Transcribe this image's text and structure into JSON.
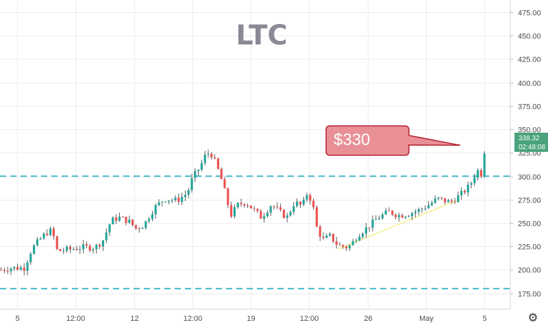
{
  "chart_data": {
    "type": "candlestick",
    "title": "LTC",
    "ylim": [
      158,
      488
    ],
    "y_ticks": [
      175,
      200,
      225,
      250,
      275,
      300,
      325,
      350,
      375,
      400,
      425,
      450,
      475
    ],
    "y_tick_labels": [
      "175.00",
      "200.00",
      "225.00",
      "250.00",
      "275.00",
      "300.00",
      "325.00",
      "350.00",
      "375.00",
      "400.00",
      "425.00",
      "450.00",
      "475.00"
    ],
    "x_tick_labels": [
      "5",
      "12:00",
      "12",
      "12:00",
      "19",
      "12:00",
      "26",
      "May",
      "5"
    ],
    "horizontal_levels": [
      300,
      180
    ],
    "trendline": {
      "from": {
        "t": 0.662,
        "price": 222
      },
      "to": {
        "t": 0.895,
        "price": 274
      }
    },
    "callout": {
      "text": "$330",
      "price": 333
    },
    "last_price": {
      "value": "338.32",
      "countdown": "02:48:08",
      "price": 338.32
    },
    "colors": {
      "up": "#26a69a",
      "down": "#ef5350",
      "wick": "#333333",
      "level": "#3fb9c9",
      "trend": "#f5ee8a",
      "callout_fill": "#e89096",
      "callout_stroke": "#b5202b",
      "tag": "#4aa37d"
    },
    "price_path": [
      [
        0.0,
        200
      ],
      [
        0.02,
        202
      ],
      [
        0.045,
        202
      ],
      [
        0.06,
        222
      ],
      [
        0.075,
        232
      ],
      [
        0.09,
        240
      ],
      [
        0.1,
        242
      ],
      [
        0.11,
        220
      ],
      [
        0.135,
        222
      ],
      [
        0.16,
        224
      ],
      [
        0.185,
        224
      ],
      [
        0.2,
        232
      ],
      [
        0.215,
        252
      ],
      [
        0.23,
        256
      ],
      [
        0.25,
        252
      ],
      [
        0.265,
        244
      ],
      [
        0.28,
        248
      ],
      [
        0.3,
        266
      ],
      [
        0.32,
        276
      ],
      [
        0.345,
        274
      ],
      [
        0.365,
        282
      ],
      [
        0.375,
        298
      ],
      [
        0.39,
        310
      ],
      [
        0.4,
        322
      ],
      [
        0.41,
        326
      ],
      [
        0.42,
        314
      ],
      [
        0.43,
        300
      ],
      [
        0.438,
        284
      ],
      [
        0.45,
        258
      ],
      [
        0.465,
        270
      ],
      [
        0.48,
        272
      ],
      [
        0.495,
        264
      ],
      [
        0.51,
        256
      ],
      [
        0.53,
        270
      ],
      [
        0.545,
        262
      ],
      [
        0.56,
        256
      ],
      [
        0.575,
        272
      ],
      [
        0.59,
        268
      ],
      [
        0.6,
        282
      ],
      [
        0.61,
        272
      ],
      [
        0.618,
        246
      ],
      [
        0.63,
        232
      ],
      [
        0.645,
        236
      ],
      [
        0.66,
        226
      ],
      [
        0.68,
        224
      ],
      [
        0.69,
        230
      ],
      [
        0.7,
        238
      ],
      [
        0.715,
        244
      ],
      [
        0.74,
        256
      ],
      [
        0.76,
        262
      ],
      [
        0.78,
        258
      ],
      [
        0.8,
        260
      ],
      [
        0.82,
        264
      ],
      [
        0.84,
        270
      ],
      [
        0.855,
        276
      ],
      [
        0.88,
        272
      ],
      [
        0.9,
        280
      ],
      [
        0.915,
        288
      ],
      [
        0.925,
        296
      ],
      [
        0.932,
        308
      ],
      [
        0.94,
        300
      ],
      [
        0.95,
        338
      ]
    ]
  }
}
